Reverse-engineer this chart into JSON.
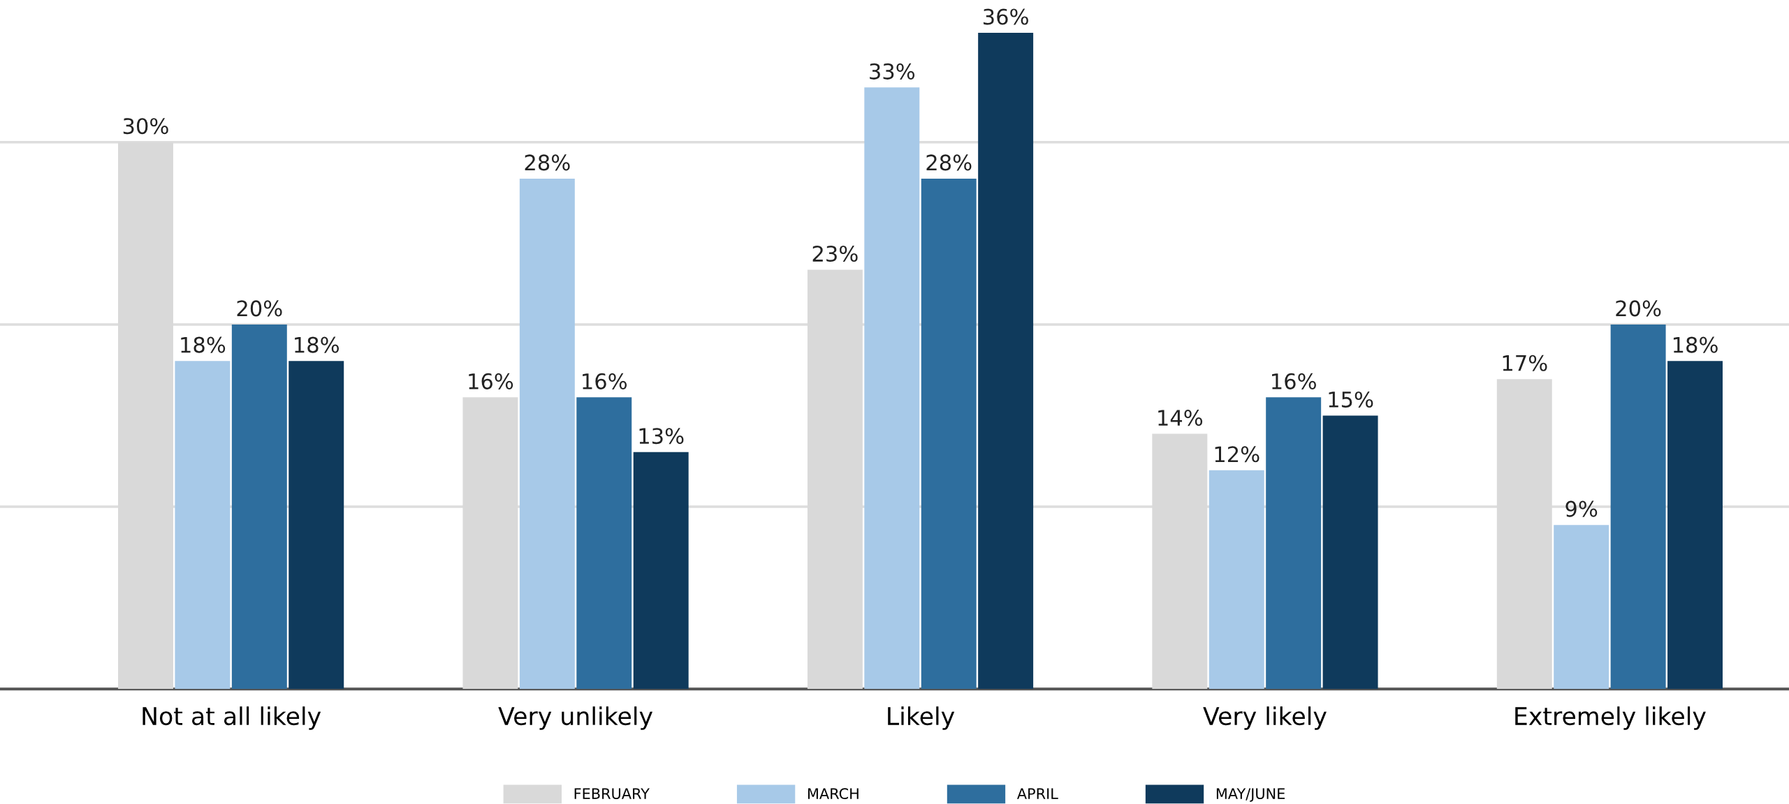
{
  "chart_data": {
    "type": "bar",
    "categories": [
      "Not at all likely",
      "Very unlikely",
      "Likely",
      "Very likely",
      "Extremely likely"
    ],
    "series": [
      {
        "name": "FEBRUARY",
        "color": "#d9d9d9",
        "values": [
          30,
          16,
          23,
          14,
          17
        ],
        "value_labels": [
          "30%",
          "16%",
          "23%",
          "14%",
          "17%"
        ]
      },
      {
        "name": "MARCH",
        "color": "#a7c9e8",
        "values": [
          18,
          28,
          33,
          12,
          9
        ],
        "value_labels": [
          "18%",
          "28%",
          "33%",
          "12%",
          "9%"
        ]
      },
      {
        "name": "APRIL",
        "color": "#2e6e9e",
        "values": [
          20,
          16,
          28,
          16,
          20
        ],
        "value_labels": [
          "20%",
          "16%",
          "28%",
          "16%",
          "20%"
        ]
      },
      {
        "name": "MAY/JUNE",
        "color": "#0f3a5c",
        "values": [
          18,
          13,
          36,
          15,
          18
        ],
        "value_labels": [
          "18%",
          "13%",
          "36%",
          "15%",
          "18%"
        ]
      }
    ],
    "grid": "y",
    "legend": "bottom",
    "tick_labels": "x"
  }
}
